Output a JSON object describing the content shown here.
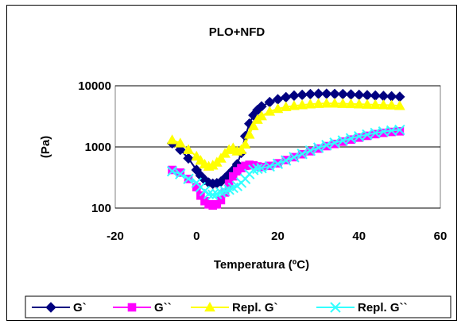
{
  "chart_data": {
    "type": "scatter",
    "title": "PLO+NFD",
    "xlabel": "Temperatura (ºC)",
    "ylabel": "(Pa)",
    "xlim": [
      -20,
      60
    ],
    "ylim": [
      100,
      10000
    ],
    "y_scale": "log",
    "x_ticks": [
      "-20",
      "0",
      "20",
      "40",
      "60"
    ],
    "x_tick_values": [
      -20,
      0,
      20,
      40,
      60
    ],
    "y_ticks": [
      "100",
      "1000",
      "10000"
    ],
    "y_tick_values": [
      100,
      1000,
      10000
    ],
    "grid": "horizontal",
    "legend_position": "bottom",
    "series": [
      {
        "name": "G`",
        "color": "#000080",
        "marker": "diamond",
        "x": [
          -6,
          -4,
          -2,
          0,
          1,
          2,
          3,
          4,
          5,
          6,
          7,
          8,
          9,
          10,
          11,
          12,
          13,
          14,
          15,
          16,
          18,
          20,
          22,
          24,
          26,
          28,
          30,
          32,
          34,
          36,
          38,
          40,
          42,
          44,
          46,
          48,
          50
        ],
        "y": [
          1150,
          900,
          650,
          420,
          340,
          290,
          260,
          250,
          255,
          270,
          310,
          360,
          420,
          520,
          800,
          1500,
          2400,
          3300,
          4000,
          4600,
          5400,
          6000,
          6500,
          6900,
          7100,
          7300,
          7400,
          7400,
          7350,
          7300,
          7200,
          7100,
          7000,
          6900,
          6800,
          6700,
          6600
        ]
      },
      {
        "name": "G``",
        "color": "#FF00FF",
        "marker": "square",
        "x": [
          -6,
          -4,
          -2,
          0,
          1,
          2,
          3,
          4,
          5,
          6,
          7,
          8,
          9,
          10,
          11,
          12,
          13,
          14,
          15,
          16,
          18,
          20,
          22,
          24,
          26,
          28,
          30,
          32,
          34,
          36,
          38,
          40,
          42,
          44,
          46,
          48,
          50
        ],
        "y": [
          420,
          380,
          300,
          220,
          160,
          130,
          115,
          110,
          115,
          135,
          180,
          250,
          330,
          400,
          450,
          490,
          510,
          500,
          480,
          470,
          490,
          540,
          610,
          680,
          760,
          850,
          940,
          1030,
          1120,
          1220,
          1320,
          1420,
          1520,
          1620,
          1700,
          1760,
          1800
        ]
      },
      {
        "name": "Repl. G`",
        "color": "#FFFF00",
        "marker": "triangle",
        "x": [
          -6,
          -4,
          -2,
          0,
          1,
          2,
          3,
          4,
          5,
          6,
          7,
          8,
          9,
          10,
          11,
          12,
          13,
          14,
          15,
          16,
          18,
          20,
          22,
          24,
          26,
          28,
          30,
          32,
          34,
          36,
          38,
          40,
          42,
          44,
          46,
          48,
          50
        ],
        "y": [
          1300,
          1150,
          900,
          700,
          600,
          520,
          480,
          500,
          560,
          650,
          780,
          900,
          960,
          850,
          900,
          1100,
          1600,
          2200,
          2800,
          3200,
          3800,
          4200,
          4500,
          4700,
          4850,
          5000,
          5100,
          5150,
          5150,
          5100,
          5050,
          5000,
          4950,
          4900,
          4850,
          4800,
          4700
        ]
      },
      {
        "name": "Repl. G``",
        "color": "#33FFFF",
        "marker": "x",
        "x": [
          -6,
          -4,
          -2,
          0,
          1,
          2,
          3,
          4,
          5,
          6,
          7,
          8,
          9,
          10,
          11,
          12,
          13,
          14,
          15,
          16,
          18,
          20,
          22,
          24,
          26,
          28,
          30,
          32,
          34,
          36,
          38,
          40,
          42,
          44,
          46,
          48,
          50
        ],
        "y": [
          400,
          360,
          300,
          260,
          220,
          190,
          170,
          165,
          170,
          180,
          190,
          200,
          215,
          230,
          260,
          300,
          360,
          420,
          440,
          450,
          480,
          530,
          600,
          680,
          770,
          870,
          970,
          1070,
          1170,
          1270,
          1380,
          1490,
          1590,
          1690,
          1780,
          1850,
          1900
        ]
      }
    ]
  }
}
